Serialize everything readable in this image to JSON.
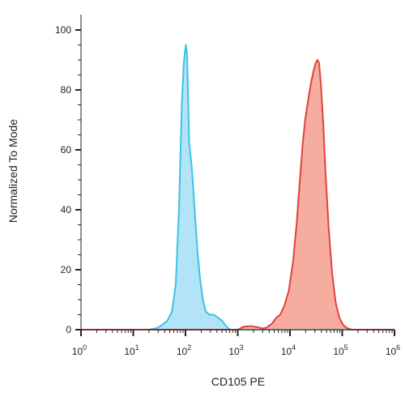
{
  "chart_data": {
    "type": "area",
    "title": "",
    "xlabel": "CD105 PE",
    "ylabel": "Normalized To Mode",
    "xscale": "log",
    "xlim": [
      1,
      1000000
    ],
    "ylim": [
      0,
      100
    ],
    "grid": false,
    "legend": "none",
    "y_ticks": [
      0,
      20,
      40,
      60,
      80,
      100
    ],
    "x_ticks": [
      {
        "base": "10",
        "exp": "0",
        "value": 1
      },
      {
        "base": "10",
        "exp": "1",
        "value": 10
      },
      {
        "base": "10",
        "exp": "2",
        "value": 100
      },
      {
        "base": "10",
        "exp": "3",
        "value": 1000
      },
      {
        "base": "10",
        "exp": "4",
        "value": 10000
      },
      {
        "base": "10",
        "exp": "5",
        "value": 100000
      },
      {
        "base": "10",
        "exp": "6",
        "value": 1000000
      }
    ],
    "series": [
      {
        "stroke": "#3ec1e5",
        "fill": "#b3e3f6",
        "points": [
          [
            1,
            0
          ],
          [
            20,
            0
          ],
          [
            28,
            0.5
          ],
          [
            35,
            1.5
          ],
          [
            45,
            3
          ],
          [
            55,
            6
          ],
          [
            65,
            15
          ],
          [
            75,
            40
          ],
          [
            85,
            75
          ],
          [
            92,
            88
          ],
          [
            98,
            93
          ],
          [
            102,
            95
          ],
          [
            107,
            92
          ],
          [
            112,
            78
          ],
          [
            118,
            62
          ],
          [
            125,
            58
          ],
          [
            132,
            54
          ],
          [
            142,
            46
          ],
          [
            155,
            36
          ],
          [
            170,
            26
          ],
          [
            190,
            17
          ],
          [
            215,
            10
          ],
          [
            245,
            6
          ],
          [
            290,
            5
          ],
          [
            350,
            5
          ],
          [
            420,
            4
          ],
          [
            500,
            3
          ],
          [
            580,
            1.5
          ],
          [
            650,
            0.5
          ],
          [
            720,
            0
          ],
          [
            1000000,
            0
          ]
        ]
      },
      {
        "stroke": "#e0433a",
        "fill": "#f6ac9f",
        "points": [
          [
            1,
            0
          ],
          [
            1000,
            0
          ],
          [
            1300,
            1
          ],
          [
            1800,
            1.2
          ],
          [
            2400,
            0.8
          ],
          [
            3000,
            0.4
          ],
          [
            3500,
            0.6
          ],
          [
            4500,
            2
          ],
          [
            5500,
            4
          ],
          [
            6500,
            5
          ],
          [
            7800,
            8
          ],
          [
            9500,
            13
          ],
          [
            11500,
            23
          ],
          [
            13500,
            36
          ],
          [
            15500,
            50
          ],
          [
            17500,
            62
          ],
          [
            19500,
            70
          ],
          [
            22000,
            76
          ],
          [
            25000,
            82
          ],
          [
            28000,
            86
          ],
          [
            31000,
            89
          ],
          [
            33500,
            90
          ],
          [
            36000,
            89
          ],
          [
            39000,
            82
          ],
          [
            43000,
            70
          ],
          [
            48000,
            52
          ],
          [
            55000,
            34
          ],
          [
            64000,
            19
          ],
          [
            75000,
            9
          ],
          [
            88000,
            4
          ],
          [
            105000,
            1.5
          ],
          [
            125000,
            0.5
          ],
          [
            150000,
            0
          ],
          [
            1000000,
            0
          ]
        ]
      }
    ]
  }
}
